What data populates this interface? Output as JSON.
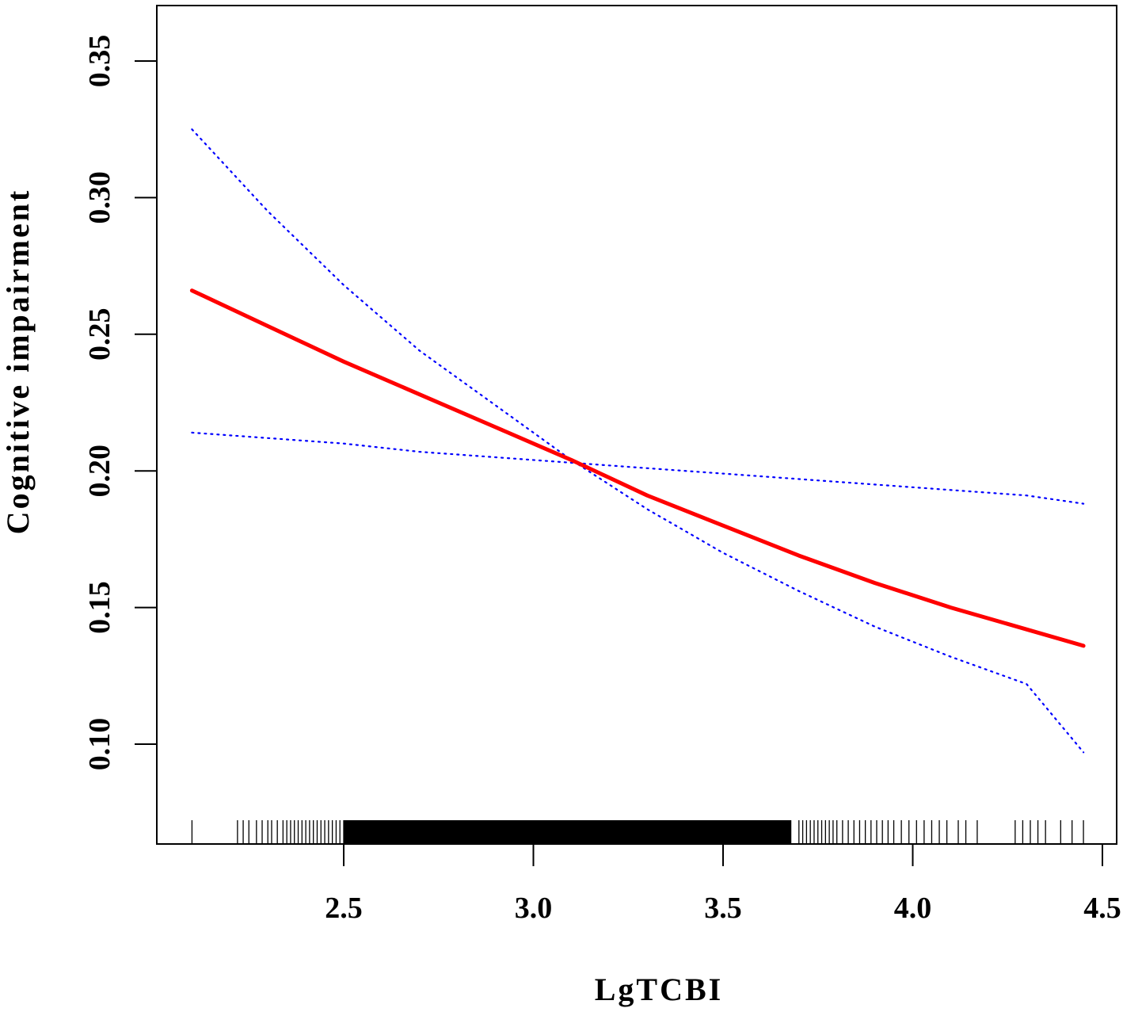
{
  "chart_data": {
    "type": "line",
    "title": "",
    "xlabel": "LgTCBI",
    "ylabel": "Cognitive impairment",
    "xlim": [
      2.0,
      4.5
    ],
    "ylim": [
      0.072,
      0.37
    ],
    "x_ticks": [
      2.5,
      3.0,
      3.5,
      4.0,
      4.5
    ],
    "x_tick_labels": [
      "2.5",
      "3.0",
      "3.5",
      "4.0",
      "4.5"
    ],
    "y_ticks": [
      0.1,
      0.15,
      0.2,
      0.25,
      0.3,
      0.35
    ],
    "y_tick_labels": [
      "0.10",
      "0.15",
      "0.20",
      "0.25",
      "0.30",
      "0.35"
    ],
    "grid": false,
    "legend": "none",
    "series": [
      {
        "role": "estimate",
        "style": "solid",
        "color": "#ff0000",
        "x": [
          2.1,
          2.3,
          2.5,
          2.7,
          2.9,
          3.1,
          3.3,
          3.5,
          3.7,
          3.9,
          4.1,
          4.3,
          4.45
        ],
        "values": [
          0.266,
          0.253,
          0.24,
          0.228,
          0.216,
          0.204,
          0.191,
          0.18,
          0.169,
          0.159,
          0.15,
          0.142,
          0.136
        ]
      },
      {
        "role": "upper-ci",
        "style": "dotted",
        "color": "#0000ff",
        "x": [
          2.1,
          2.3,
          2.5,
          2.7,
          2.9,
          3.1,
          3.3,
          3.5,
          3.7,
          3.9,
          4.1,
          4.3,
          4.45
        ],
        "values": [
          0.325,
          0.295,
          0.268,
          0.244,
          0.224,
          0.204,
          0.186,
          0.17,
          0.156,
          0.143,
          0.132,
          0.122,
          0.097
        ]
      },
      {
        "role": "lower-ci",
        "style": "dotted",
        "color": "#0000ff",
        "x": [
          2.1,
          2.3,
          2.5,
          2.7,
          2.9,
          3.1,
          3.3,
          3.5,
          3.7,
          3.9,
          4.1,
          4.3,
          4.45
        ],
        "values": [
          0.214,
          0.212,
          0.21,
          0.207,
          0.205,
          0.203,
          0.201,
          0.199,
          0.197,
          0.195,
          0.193,
          0.191,
          0.188
        ]
      }
    ],
    "rug": {
      "color": "#000000",
      "x": [
        2.1,
        2.22,
        2.235,
        2.25,
        2.27,
        2.285,
        2.3,
        2.31,
        2.325,
        2.34,
        2.35,
        2.36,
        2.37,
        2.38,
        2.39,
        2.4,
        2.41,
        2.42,
        2.43,
        2.44,
        2.45,
        2.46,
        2.47,
        2.48,
        2.49,
        2.5,
        3.7,
        3.71,
        3.72,
        3.73,
        3.74,
        3.75,
        3.76,
        3.77,
        3.78,
        3.79,
        3.8,
        3.815,
        3.83,
        3.845,
        3.86,
        3.875,
        3.89,
        3.905,
        3.92,
        3.935,
        3.95,
        3.97,
        3.99,
        4.01,
        4.03,
        4.05,
        4.07,
        4.09,
        4.12,
        4.14,
        4.17,
        4.27,
        4.29,
        4.31,
        4.33,
        4.35,
        4.39,
        4.42,
        4.45
      ],
      "dense_band": [
        2.5,
        3.68
      ]
    }
  }
}
